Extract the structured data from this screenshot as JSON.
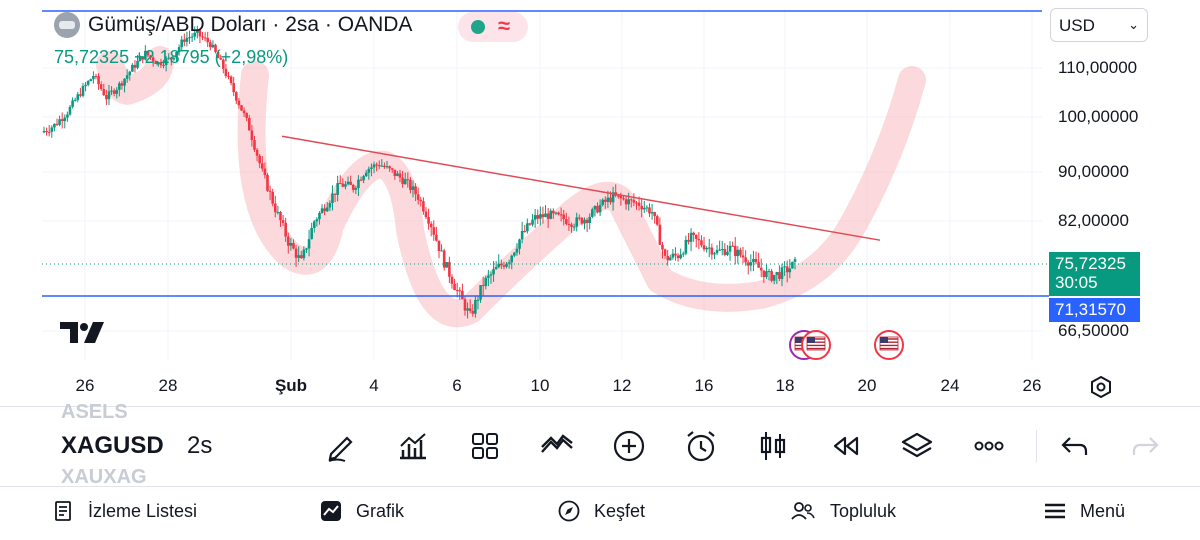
{
  "legend": {
    "title": "Gümüş/ABD Doları · 2sa · OANDA",
    "price": "75,72325",
    "change": "+2,18795 (+2,98%)",
    "status_wave": "≈",
    "colors": {
      "up": "#089981",
      "down": "#f23645"
    }
  },
  "currency": {
    "value": "USD",
    "chevron": "⌄"
  },
  "price_axis": {
    "labels": [
      "110,00000",
      "100,00000",
      "90,00000",
      "82,00000",
      "66,50000"
    ],
    "current_price": "75,72325",
    "countdown": "30:05",
    "support_price": "71,31570"
  },
  "time_axis": {
    "labels": [
      "26",
      "28",
      "Şub",
      "4",
      "6",
      "10",
      "12",
      "16",
      "18",
      "20",
      "24",
      "26"
    ]
  },
  "chart_data": {
    "type": "candlestick",
    "symbol": "XAGUSD",
    "interval": "2s",
    "ylim": [
      62,
      118
    ],
    "y_ticks": [
      66.5,
      82,
      90,
      100,
      110
    ],
    "x_ticks": [
      "26",
      "28",
      "Şub",
      "4",
      "6",
      "10",
      "12",
      "16",
      "18",
      "20",
      "24",
      "26"
    ],
    "last_price": 75.72325,
    "support_level": 71.3157,
    "trendline": {
      "start": {
        "date": "30 Oca",
        "price": 96.5
      },
      "end": {
        "date": "20 Şub",
        "price": 79.2
      }
    },
    "path_close": [
      97.2,
      98.5,
      101,
      105,
      108.5,
      104,
      106.5,
      110,
      113,
      111,
      112,
      116,
      117,
      115,
      110,
      104,
      98,
      90,
      84,
      79,
      76,
      82,
      85,
      88,
      87.5,
      90.5,
      91.5,
      90,
      88.5,
      86,
      81.5,
      76,
      72,
      68.5,
      73,
      75,
      76.5,
      80,
      82.5,
      83,
      82.5,
      81.8,
      82.5,
      84.5,
      86,
      85.3,
      84.8,
      83.5,
      76.5,
      77,
      79.5,
      78.5,
      77.5,
      78,
      76.8,
      75.5,
      74,
      74.5,
      75.72
    ],
    "grid": true,
    "legend": "top-left"
  },
  "watchlist": {
    "prev_symbol": "ASELS",
    "symbol": "XAGUSD",
    "interval": "2s",
    "next_symbol": "XAUXAG"
  },
  "toolbar": {
    "items": [
      "draw-icon",
      "indicators-icon",
      "layout-grid-icon",
      "compare-icon",
      "add-icon",
      "alarm-icon",
      "candle-type-icon",
      "replay-icon",
      "layers-icon",
      "more-icon",
      "undo-icon",
      "redo-icon"
    ]
  },
  "nav": {
    "watchlist": "İzleme Listesi",
    "chart": "Grafik",
    "explore": "Keşfet",
    "community": "Topluluk",
    "menu": "Menü"
  }
}
